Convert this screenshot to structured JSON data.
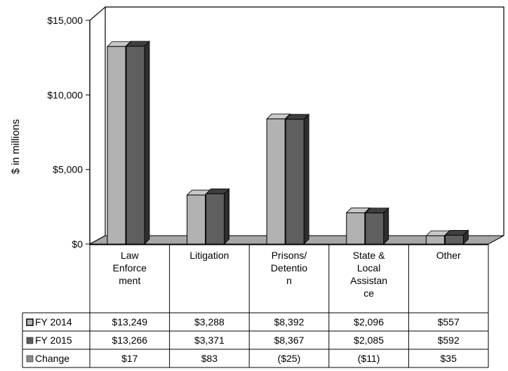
{
  "chart_data": {
    "type": "bar",
    "ylabel": "$ in millions",
    "ylim": [
      0,
      15000
    ],
    "yticks": [
      "$0",
      "$5,000",
      "$10,000",
      "$15,000"
    ],
    "categories": [
      [
        "Law",
        "Enforce",
        "ment"
      ],
      [
        "Litigation"
      ],
      [
        "Prisons/",
        "Detentio",
        "n"
      ],
      [
        "State &",
        "Local",
        "Assistan",
        "ce"
      ],
      [
        "Other"
      ]
    ],
    "series": [
      {
        "name": "FY 2014",
        "values": [
          13249,
          3288,
          8392,
          2096,
          557
        ],
        "color": "#b2b2b2",
        "labels": [
          "$13,249",
          "$3,288",
          "$8,392",
          "$2,096",
          "$557"
        ]
      },
      {
        "name": "FY 2015",
        "values": [
          13266,
          3371,
          8367,
          2085,
          592
        ],
        "color": "#5f5f5f",
        "labels": [
          "$13,266",
          "$3,371",
          "$8,367",
          "$2,085",
          "$592"
        ]
      },
      {
        "name": "Change",
        "values": [
          17,
          83,
          -25,
          -11,
          35
        ],
        "color": "#8c8c8c",
        "labels": [
          "$17",
          "$83",
          "($25)",
          "($11)",
          "$35"
        ]
      }
    ],
    "grid": false,
    "legend": "data-table"
  }
}
